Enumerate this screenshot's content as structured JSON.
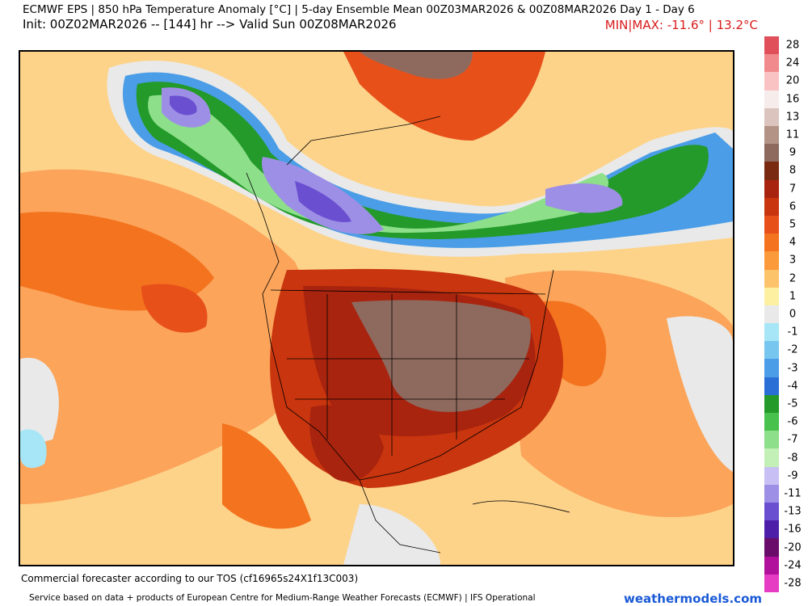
{
  "header": {
    "title_line1": "ECMWF EPS | 850 hPa Temperature Anomaly [°C] | 5-day Ensemble Mean 00Z03MAR2026 & 00Z08MAR2026   Day 1 - Day 6",
    "title_line2": "Init: 00Z02MAR2026 -- [144] hr --> Valid Sun 00Z08MAR2026",
    "minmax": "MIN|MAX: -11.6° | 13.2°C"
  },
  "legend": {
    "labels": [
      "28",
      "24",
      "20",
      "16",
      "13",
      "11",
      "9",
      "8",
      "7",
      "6",
      "5",
      "4",
      "3",
      "2",
      "1",
      "0",
      "-1",
      "-2",
      "-3",
      "-4",
      "-5",
      "-6",
      "-7",
      "-8",
      "-9",
      "-11",
      "-13",
      "-16",
      "-20",
      "-24",
      "-28"
    ],
    "colors": [
      "#e0505a",
      "#f08a8c",
      "#f9c3c3",
      "#f7ecec",
      "#dbc4bd",
      "#b39386",
      "#8e6a5e",
      "#7b2a12",
      "#a8240f",
      "#c8350e",
      "#e8501a",
      "#f4731e",
      "#fb9a3a",
      "#fdc36a",
      "#fdf0a0",
      "#e9e9e9",
      "#a6e6f7",
      "#77c6ef",
      "#4a9de6",
      "#2a6fd6",
      "#239a2a",
      "#48c24c",
      "#8ddf8a",
      "#c2f0b6",
      "#c8c0f4",
      "#9d8fe6",
      "#6a4fd0",
      "#4d1fa8",
      "#6a0c6a",
      "#b0109c",
      "#e63cc4"
    ]
  },
  "map": {
    "description_icon": "temperature-anomaly-map"
  },
  "footer": {
    "line1": "Commercial forecaster according to our TOS (cf16965s24X1f13C003)",
    "line2": "Service based on data + products of European Centre for Medium-Range Weather Forecasts (ECMWF) | IFS Operational",
    "brand": "weathermodels.com"
  }
}
